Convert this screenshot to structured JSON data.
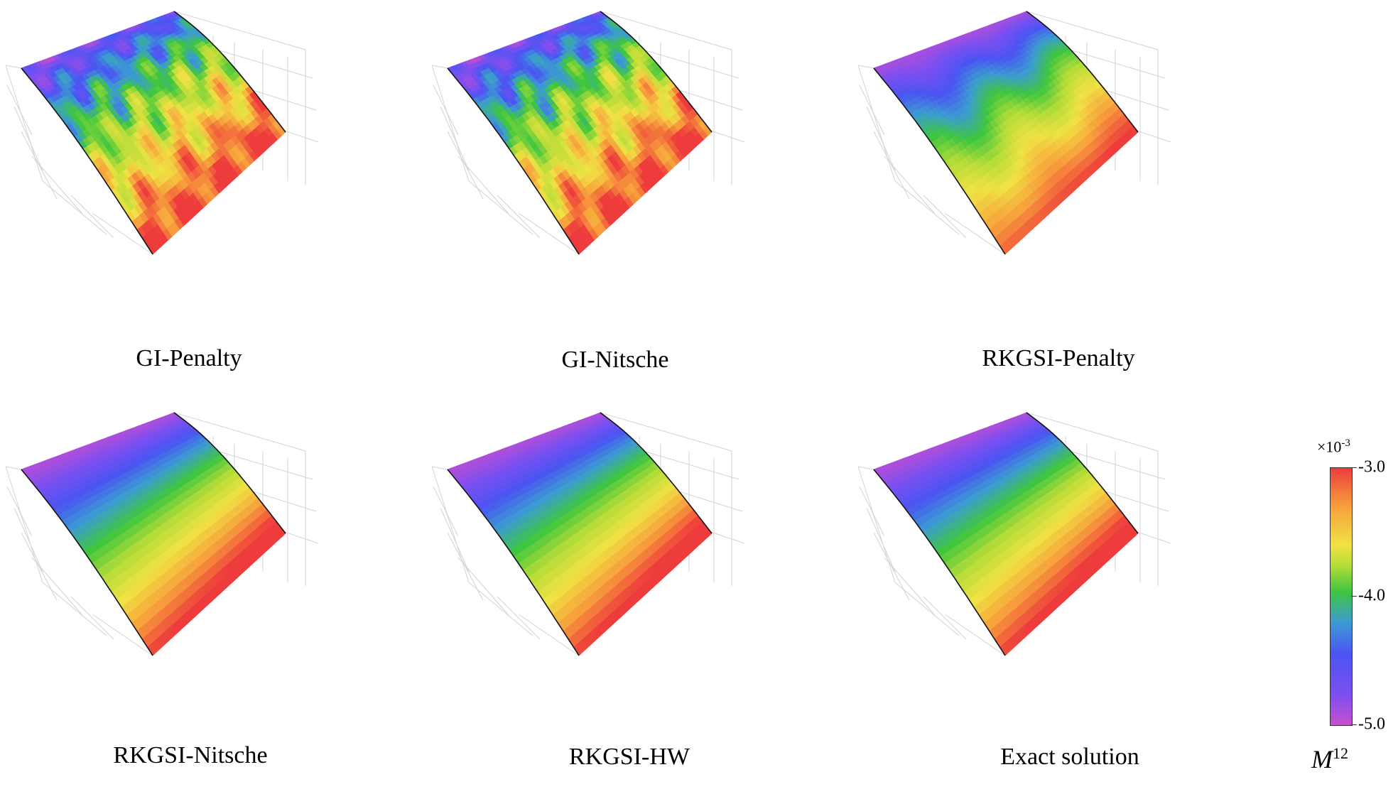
{
  "panels": [
    {
      "label": "GI-Penalty",
      "pattern": "noisy-strong"
    },
    {
      "label": "GI-Nitsche",
      "pattern": "noisy-strong"
    },
    {
      "label": "RKGSI-Penalty",
      "pattern": "wavy"
    },
    {
      "label": "RKGSI-Nitsche",
      "pattern": "smooth"
    },
    {
      "label": "RKGSI-HW",
      "pattern": "smooth"
    },
    {
      "label": "Exact solution",
      "pattern": "smooth"
    }
  ],
  "colorbar": {
    "scale_prefix": "×10",
    "scale_exponent": "-3",
    "ticks": [
      "-3.0",
      "-4.0",
      "-5.0"
    ],
    "tick_values": [
      -3.0,
      -4.0,
      -5.0
    ],
    "range": [
      -5.0,
      -3.0
    ],
    "title_symbol": "M",
    "title_superscript": "12",
    "colors": [
      "#c64fcf",
      "#7c4ff0",
      "#4a55f2",
      "#3c9cd2",
      "#3fc63f",
      "#b4dc38",
      "#f0e244",
      "#f7a03c",
      "#ee3c3c"
    ]
  }
}
